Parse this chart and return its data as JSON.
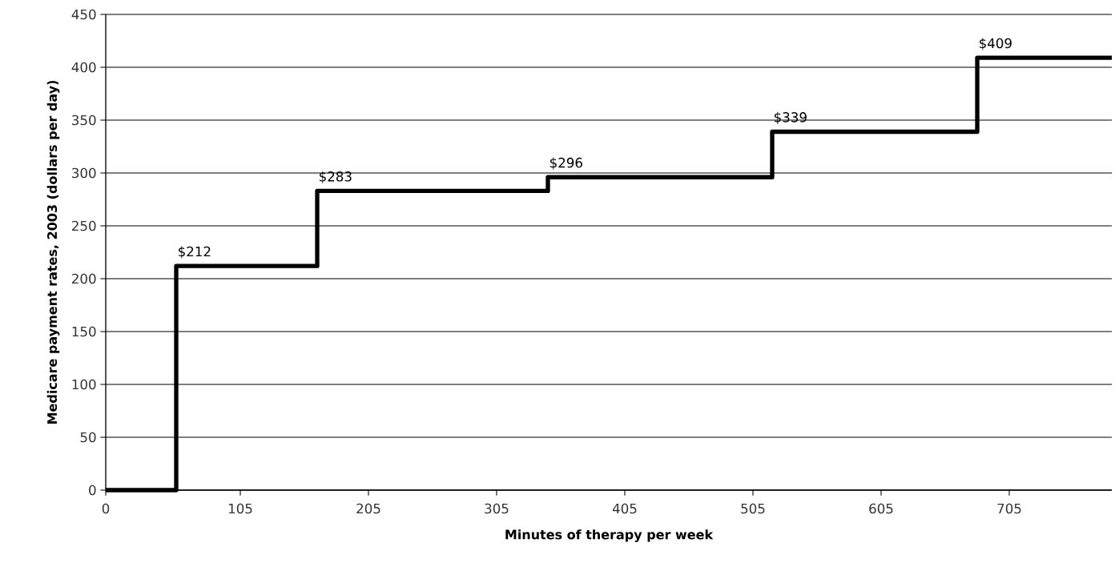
{
  "chart_data": {
    "type": "step",
    "xlabel": "Minutes of therapy per week",
    "ylabel": "Medicare payment rates, 2003 (dollars per day)",
    "x": [
      0,
      55,
      165,
      345,
      520,
      680,
      785
    ],
    "values": [
      0,
      212,
      283,
      296,
      339,
      409,
      409
    ],
    "value_labels": [
      null,
      "$212",
      "$283",
      "$296",
      "$339",
      "$409",
      null
    ],
    "color": "#000000",
    "xlim": [
      0,
      785
    ],
    "xticks": [
      0,
      105,
      205,
      305,
      405,
      505,
      605,
      705
    ],
    "ylim": [
      0,
      450
    ],
    "yticks": [
      0,
      50,
      100,
      150,
      200,
      250,
      300,
      350,
      400,
      450
    ],
    "grid": "y",
    "marker": "none",
    "line_style": "solid"
  }
}
